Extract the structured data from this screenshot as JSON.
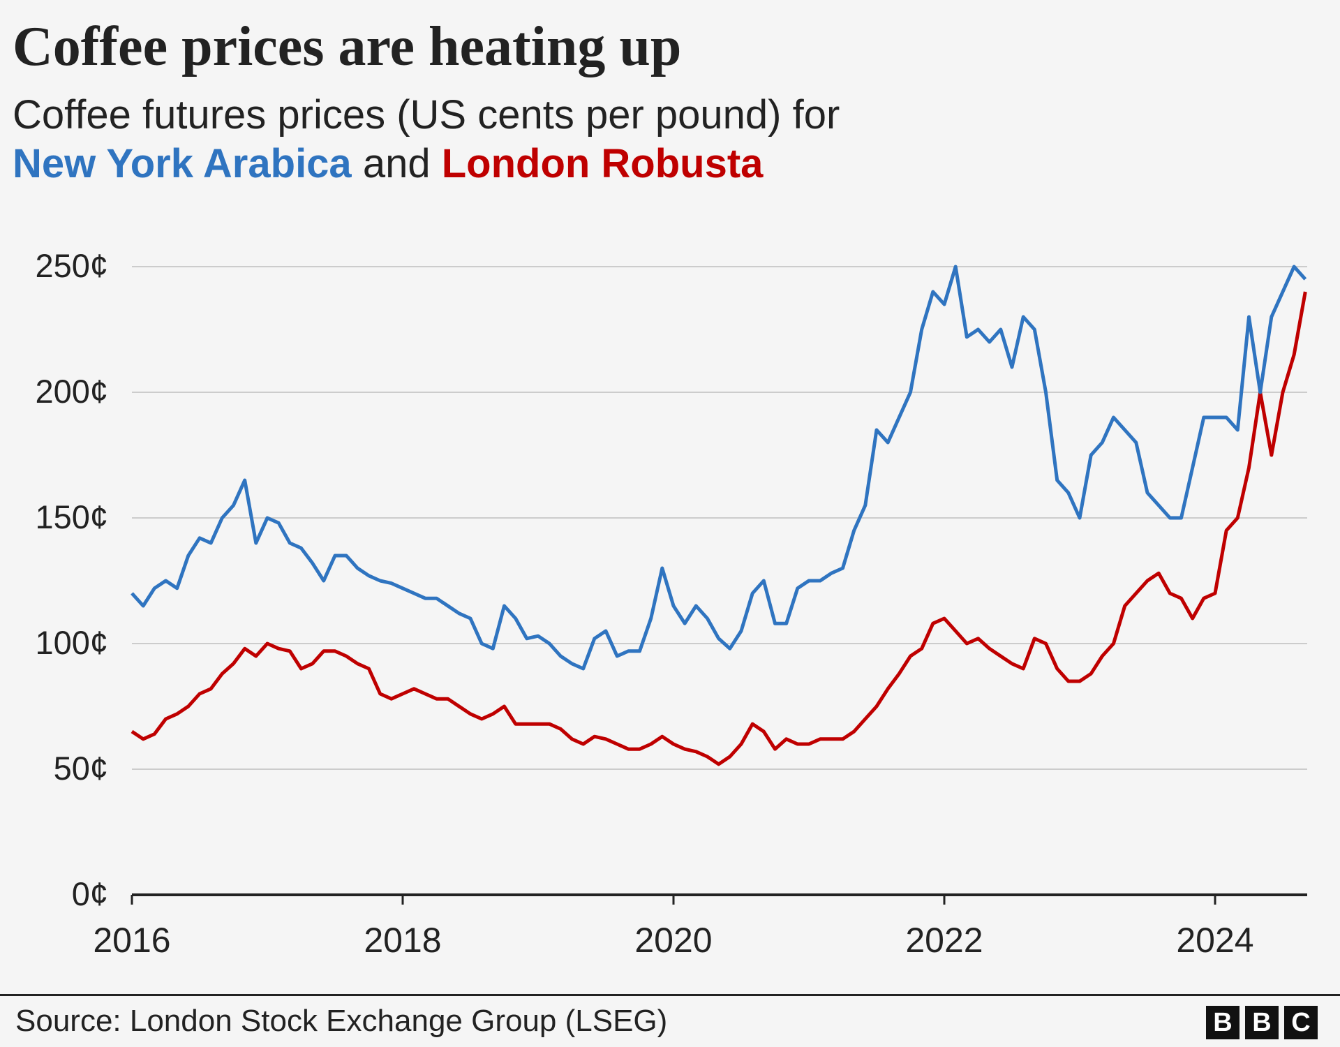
{
  "title": "Coffee prices are heating up",
  "subtitle": {
    "line1": "Coffee futures prices (US cents per pound) for",
    "series1": "New York Arabica",
    "and": "and",
    "series2": "London Robusta"
  },
  "source": "Source: London Stock Exchange Group (LSEG)",
  "logo": [
    "B",
    "B",
    "C"
  ],
  "chart_data": {
    "type": "line",
    "title": "Coffee prices are heating up",
    "ylabel": "",
    "xlabel": "",
    "ylim": [
      0,
      250
    ],
    "xlim": [
      "2016-01",
      "2024-09"
    ],
    "yticks": [
      0,
      50,
      100,
      150,
      200,
      250
    ],
    "ytick_labels": [
      "0¢",
      "50¢",
      "100¢",
      "150¢",
      "200¢",
      "250¢"
    ],
    "xticks": [
      "2016",
      "2018",
      "2020",
      "2022",
      "2024"
    ],
    "grid": true,
    "start_month": "2016-01",
    "frequency": "monthly",
    "series": [
      {
        "name": "New York Arabica",
        "color": "#2f74c0",
        "values": [
          120,
          115,
          122,
          125,
          122,
          135,
          142,
          140,
          150,
          155,
          165,
          140,
          150,
          148,
          140,
          138,
          132,
          125,
          135,
          135,
          130,
          127,
          125,
          124,
          122,
          120,
          118,
          118,
          115,
          112,
          110,
          100,
          98,
          115,
          110,
          102,
          103,
          100,
          95,
          92,
          90,
          102,
          105,
          95,
          97,
          97,
          110,
          130,
          115,
          108,
          115,
          110,
          102,
          98,
          105,
          120,
          125,
          108,
          108,
          122,
          125,
          125,
          128,
          130,
          145,
          155,
          185,
          180,
          190,
          200,
          225,
          240,
          235,
          250,
          222,
          225,
          220,
          225,
          210,
          230,
          225,
          200,
          165,
          160,
          150,
          175,
          180,
          190,
          185,
          180,
          160,
          155,
          150,
          150,
          170,
          190,
          190,
          190,
          185,
          230,
          200,
          230,
          240,
          250,
          245
        ]
      },
      {
        "name": "London Robusta",
        "color": "#bf0000",
        "values": [
          65,
          62,
          64,
          70,
          72,
          75,
          80,
          82,
          88,
          92,
          98,
          95,
          100,
          98,
          97,
          90,
          92,
          97,
          97,
          95,
          92,
          90,
          80,
          78,
          80,
          82,
          80,
          78,
          78,
          75,
          72,
          70,
          72,
          75,
          68,
          68,
          68,
          68,
          66,
          62,
          60,
          63,
          62,
          60,
          58,
          58,
          60,
          63,
          60,
          58,
          57,
          55,
          52,
          55,
          60,
          68,
          65,
          58,
          62,
          60,
          60,
          62,
          62,
          62,
          65,
          70,
          75,
          82,
          88,
          95,
          98,
          108,
          110,
          105,
          100,
          102,
          98,
          95,
          92,
          90,
          102,
          100,
          90,
          85,
          85,
          88,
          95,
          100,
          115,
          120,
          125,
          128,
          120,
          118,
          110,
          118,
          120,
          145,
          150,
          170,
          200,
          175,
          200,
          215,
          240
        ]
      }
    ]
  }
}
